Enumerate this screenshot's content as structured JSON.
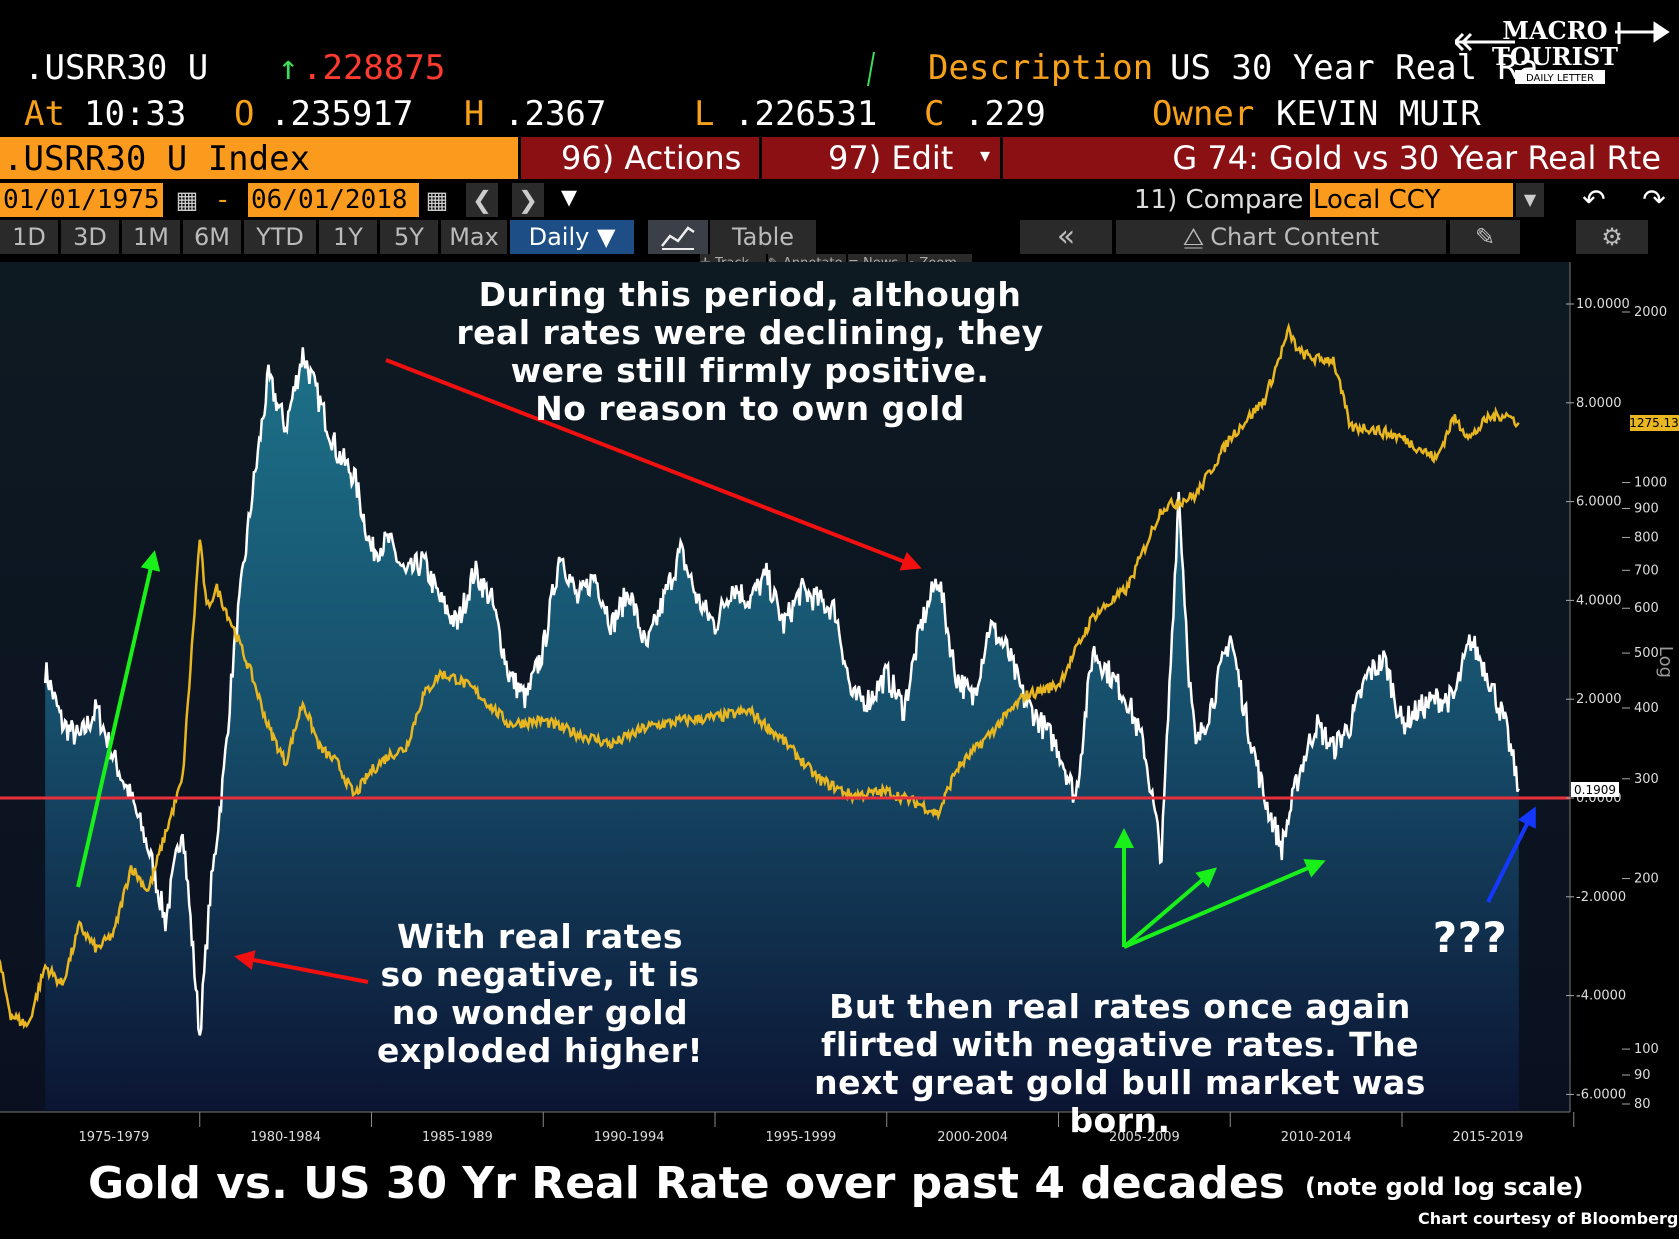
{
  "header": {
    "ticker": ".USRR30 U",
    "last": ".228875",
    "description_label": "Description",
    "description_value": "US 30 Year Real Ra",
    "time_label": "At",
    "time": "10:33",
    "open_label": "O",
    "open": ".235917",
    "high_label": "H",
    "high": ".2367",
    "low_label": "L",
    "low": ".226531",
    "close_label": "C",
    "close": ".229",
    "owner_label": "Owner",
    "owner": "KEVIN MUIR"
  },
  "toolbar": {
    "index": ".USRR30 U Index",
    "actions": "96) Actions ▾",
    "edit": "97) Edit",
    "graph_title": "G 74: Gold vs 30 Year Real Rte",
    "start_date": "01/01/1975",
    "dash": "-",
    "end_date": "06/01/2018",
    "compare": "11) Compare",
    "currency": "Local CCY"
  },
  "tabs": {
    "periods": [
      "1D",
      "3D",
      "1M",
      "6M",
      "YTD",
      "1Y",
      "5Y",
      "Max"
    ],
    "frequency": "Daily ▼",
    "table": "Table",
    "chart_content": "Chart Content"
  },
  "tools": [
    "Track",
    "Annotate",
    "News",
    "Zoom"
  ],
  "logo": {
    "line1": "MACRO",
    "line2": "TOURIST",
    "line3": "DAILY LETTER"
  },
  "annotations": {
    "top": [
      "During this period, although",
      "real rates were declining, they",
      "were still firmly positive.",
      "No reason to own gold"
    ],
    "left": [
      "With real rates",
      "so negative, it is",
      "no wonder gold",
      "exploded higher!"
    ],
    "bottom_right": [
      "But then real rates once again",
      "flirted with negative rates.  The",
      "next great gold bull market was born."
    ],
    "question": "???"
  },
  "footer": {
    "title": "Gold vs. US 30 Yr Real Rate over past 4 decades",
    "note": "(note gold log scale)",
    "credit": "Chart courtesy of Bloomberg"
  },
  "colors": {
    "gold_line": "#e8b620",
    "real_rate_line": "#ffffff",
    "zero_line": "#e8303c",
    "area_top": "#1c6b82",
    "area_bottom": "#0b1533",
    "background_top": "#0d1922",
    "bloomberg_orange": "#fb9b1d",
    "bloomberg_red": "#8b1014"
  },
  "chart_data": [
    {
      "type": "area",
      "series": [
        {
          "name": ".USRR30 U Index",
          "x": [
            1975.5,
            1976.0,
            1976.5,
            1977.0,
            1977.5,
            1978.0,
            1978.5,
            1979.0,
            1979.5,
            1980.0,
            1980.3,
            1980.7,
            1981.0,
            1981.5,
            1982.0,
            1982.5,
            1983.0,
            1983.5,
            1984.0,
            1984.5,
            1985.0,
            1985.5,
            1986.0,
            1986.5,
            1987.0,
            1987.5,
            1988.0,
            1988.5,
            1989.0,
            1989.5,
            1990.0,
            1990.5,
            1991.0,
            1991.5,
            1992.0,
            1992.5,
            1993.0,
            1993.5,
            1994.0,
            1994.5,
            1995.0,
            1995.5,
            1996.0,
            1996.5,
            1997.0,
            1997.5,
            1998.0,
            1998.5,
            1999.0,
            1999.5,
            2000.0,
            2000.5,
            2001.0,
            2001.5,
            2002.0,
            2002.5,
            2003.0,
            2003.5,
            2004.0,
            2004.5,
            2005.0,
            2005.5,
            2006.0,
            2006.5,
            2007.0,
            2007.5,
            2008.0,
            2008.5,
            2008.8,
            2009.0,
            2009.5,
            2010.0,
            2010.5,
            2011.0,
            2011.5,
            2012.0,
            2012.5,
            2013.0,
            2013.5,
            2014.0,
            2014.5,
            2015.0,
            2015.5,
            2016.0,
            2016.5,
            2017.0,
            2017.5,
            2018.0,
            2018.4
          ],
          "values": [
            2.6,
            1.5,
            1.2,
            1.8,
            0.8,
            0.0,
            -1.0,
            -2.5,
            -0.5,
            -4.8,
            -2.0,
            0.5,
            3.0,
            6.0,
            8.5,
            7.5,
            9.0,
            8.0,
            7.0,
            6.5,
            5.0,
            5.2,
            4.5,
            4.8,
            4.0,
            3.5,
            4.6,
            4.0,
            2.5,
            2.0,
            3.0,
            5.0,
            4.0,
            4.5,
            3.5,
            4.2,
            3.0,
            4.0,
            5.0,
            4.0,
            3.5,
            4.3,
            4.0,
            4.5,
            3.5,
            4.2,
            4.0,
            3.8,
            2.0,
            2.0,
            2.5,
            1.8,
            3.5,
            4.5,
            2.5,
            2.0,
            3.5,
            3.0,
            2.0,
            1.5,
            1.0,
            0.0,
            3.0,
            2.5,
            2.0,
            1.0,
            -1.2,
            6.2,
            2.5,
            1.0,
            2.0,
            3.3,
            1.5,
            0.0,
            -1.0,
            0.5,
            1.5,
            1.0,
            1.5,
            2.5,
            2.8,
            1.5,
            1.8,
            2.0,
            2.0,
            3.2,
            2.5,
            1.5,
            0.19
          ]
        }
      ],
      "y_axis": {
        "ticks": [
          10.0,
          8.0,
          6.0,
          4.0,
          2.0,
          0.0,
          -2.0,
          -4.0,
          -6.0
        ]
      },
      "current_label": "0.1909"
    },
    {
      "type": "line",
      "series": [
        {
          "name": "Gold",
          "x": [
            1973.8,
            1974.5,
            1975.0,
            1975.5,
            1976.0,
            1976.5,
            1977.0,
            1977.5,
            1978.0,
            1978.5,
            1979.0,
            1979.5,
            1980.0,
            1980.2,
            1980.5,
            1981.0,
            1981.5,
            1982.0,
            1982.5,
            1983.0,
            1983.5,
            1984.0,
            1984.5,
            1985.0,
            1985.5,
            1986.0,
            1986.5,
            1987.0,
            1987.5,
            1988.0,
            1989.0,
            1990.0,
            1991.0,
            1992.0,
            1993.0,
            1994.0,
            1995.0,
            1996.0,
            1997.0,
            1998.0,
            1999.0,
            2000.0,
            2001.0,
            2001.5,
            2002.0,
            2003.0,
            2004.0,
            2005.0,
            2006.0,
            2007.0,
            2008.0,
            2009.0,
            2010.0,
            2011.0,
            2011.7,
            2012.0,
            2012.5,
            2013.0,
            2013.5,
            2014.0,
            2015.0,
            2015.5,
            2016.0,
            2016.5,
            2017.0,
            2017.5,
            2018.0,
            2018.4
          ],
          "values": [
            180,
            115,
            110,
            140,
            130,
            165,
            150,
            160,
            210,
            190,
            240,
            300,
            800,
            600,
            650,
            550,
            460,
            370,
            320,
            410,
            340,
            320,
            280,
            310,
            330,
            340,
            420,
            460,
            450,
            430,
            375,
            380,
            360,
            345,
            370,
            380,
            385,
            395,
            350,
            300,
            280,
            285,
            270,
            260,
            310,
            360,
            420,
            440,
            580,
            650,
            900,
            950,
            1200,
            1400,
            1850,
            1700,
            1650,
            1650,
            1250,
            1250,
            1200,
            1150,
            1100,
            1300,
            1200,
            1300,
            1320,
            1275
          ]
        }
      ],
      "y_axis": {
        "ticks": [
          2000,
          1000,
          900,
          800,
          700,
          600,
          500,
          400,
          300,
          200,
          100,
          90,
          80
        ],
        "scale": "log",
        "label": "Log"
      },
      "current_label": "1275.13"
    }
  ],
  "x_axis": {
    "labels": [
      "1975-1979",
      "1980-1984",
      "1985-1989",
      "1990-1994",
      "1995-1999",
      "2000-2004",
      "2005-2009",
      "2010-2014",
      "2015-2019"
    ]
  }
}
